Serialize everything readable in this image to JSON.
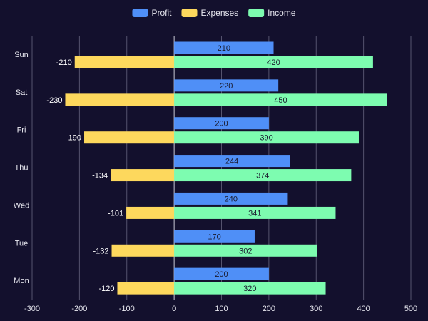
{
  "chart_data": {
    "type": "bar",
    "orientation": "horizontal",
    "categories": [
      "Sun",
      "Sat",
      "Fri",
      "Thu",
      "Wed",
      "Tue",
      "Mon"
    ],
    "series": [
      {
        "name": "Profit",
        "color": "#4f8ff7",
        "values": [
          210,
          220,
          200,
          244,
          240,
          170,
          200
        ]
      },
      {
        "name": "Expenses",
        "color": "#fdd85d",
        "values": [
          -210,
          -230,
          -190,
          -134,
          -101,
          -132,
          -120
        ]
      },
      {
        "name": "Income",
        "color": "#7dfcb0",
        "values": [
          420,
          450,
          390,
          374,
          341,
          302,
          320
        ]
      }
    ],
    "xlim": [
      -300,
      500
    ],
    "xticks": [
      -300,
      -200,
      -100,
      0,
      100,
      200,
      300,
      400,
      500
    ],
    "grid": "vertical",
    "legend_position": "top-center",
    "title": "",
    "xlabel": "",
    "ylabel": ""
  }
}
